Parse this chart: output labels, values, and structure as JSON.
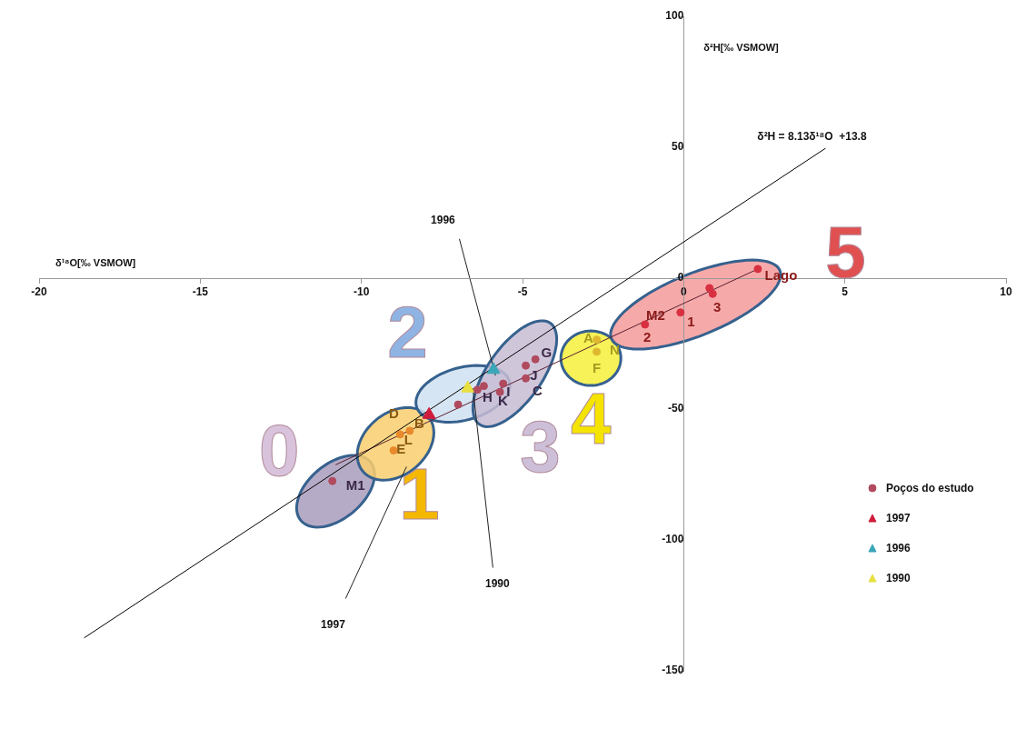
{
  "chart_data": {
    "type": "scatter",
    "xlabel": "δ¹⁸O[‰ VSMOW]",
    "ylabel": "δ²H[‰ VSMOW]",
    "xlim": [
      -20,
      10
    ],
    "ylim": [
      -150,
      100
    ],
    "xticks": [
      -20,
      -15,
      -10,
      -5,
      0,
      5,
      10
    ],
    "yticks": [
      -150,
      -100,
      -50,
      0,
      50,
      100
    ],
    "grid": false,
    "legend": "right",
    "series": [
      {
        "name": "Poços do estudo",
        "type": "scatter",
        "marker": "circle",
        "color": "#b04a5e",
        "colors": [
          "#b04a5e",
          "#e8892c",
          "#e8892c",
          "#e8892c",
          "#b04a5e",
          "#b04a5e",
          "#b04a5e",
          "#b04a5e",
          "#b04a5e",
          "#b04a5e",
          "#b04a5e",
          "#b04a5e",
          "#e0b830",
          "#e0b830",
          "#d83040",
          "#d83040",
          "#d83040",
          "#d83040",
          "#d83040"
        ],
        "x": [
          -10.9,
          -9.0,
          -8.8,
          -8.5,
          -7.0,
          -6.4,
          -6.2,
          -5.6,
          -5.7,
          -4.9,
          -4.9,
          -4.6,
          -2.7,
          -2.7,
          -1.2,
          -0.1,
          0.8,
          0.9,
          2.3
        ],
        "values": [
          -77.5,
          -65.8,
          -59.7,
          -58.3,
          -48.3,
          -42.6,
          -41.2,
          -40.3,
          -43.5,
          -38.3,
          -33.4,
          -31.0,
          -23.5,
          -28.1,
          -17.7,
          -13.1,
          -3.8,
          -6.0,
          3.5
        ]
      },
      {
        "name": "1997",
        "type": "scatter",
        "marker": "triangle",
        "color": "#d01c3c",
        "x": [
          -7.9
        ],
        "values": [
          -52.2
        ]
      },
      {
        "name": "1996",
        "type": "scatter",
        "marker": "triangle",
        "color": "#3aa6b8",
        "x": [
          -5.9
        ],
        "values": [
          -35.0
        ]
      },
      {
        "name": "1990",
        "type": "scatter",
        "marker": "triangle",
        "color": "#e8e040",
        "x": [
          -6.7
        ],
        "values": [
          -42.1
        ]
      },
      {
        "type": "line",
        "marker": "none",
        "color": "#000000",
        "x": [
          -18.6,
          4.4
        ],
        "values": [
          -137.4,
          49.6
        ]
      },
      {
        "type": "line",
        "marker": "none",
        "color": "#5a2030",
        "x": [
          -10.8,
          2.3
        ],
        "values": [
          -71.3,
          3.5
        ]
      }
    ],
    "annotations": [
      "0",
      "1",
      "2",
      "3",
      "4",
      "5",
      "M1",
      "D",
      {
        "text": "B",
        "x": -8.2,
        "y": -55.7
      },
      "L",
      {
        "text": "E",
        "x": -8.77,
        "y": -65.7
      },
      {
        "text": "H",
        "x": -6.09,
        "y": -45.9
      },
      "K",
      "I",
      {
        "text": "J",
        "x": -4.65,
        "y": -37.6
      },
      "C",
      "G",
      "A",
      "F",
      "N",
      {
        "text": "M2",
        "x": -0.87,
        "y": -14.6
      },
      "2",
      "1",
      "3",
      "Lago",
      "1996",
      "1997",
      "1990",
      "δ²H = 8.13δ¹⁸O  +13.8"
    ]
  }
}
